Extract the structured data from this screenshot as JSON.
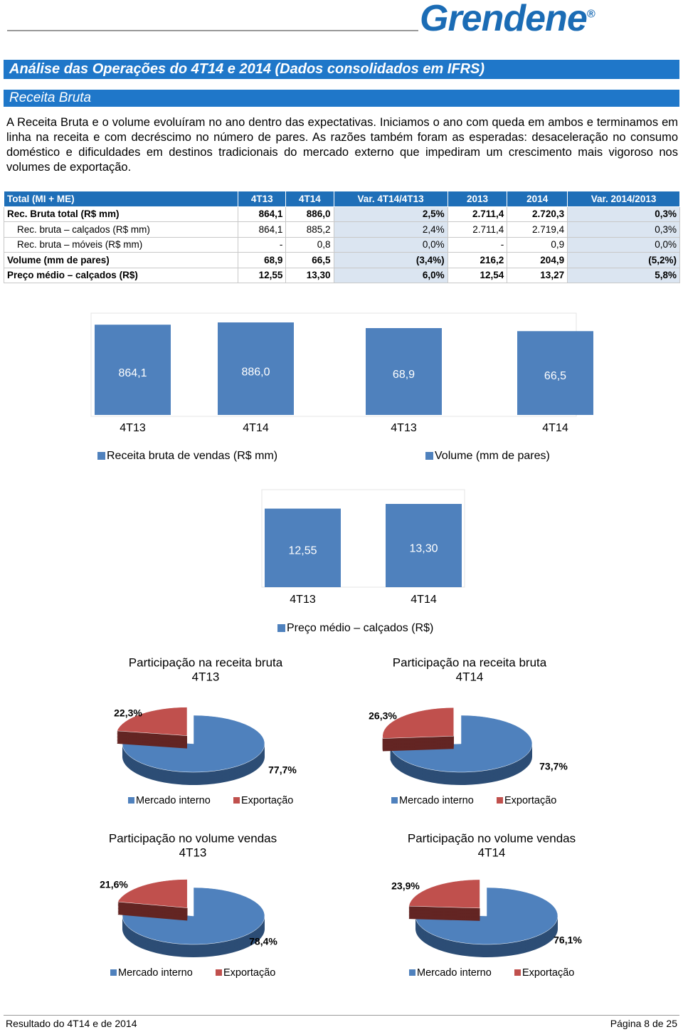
{
  "header": {
    "logo": "Grendene",
    "logo_mark": "®"
  },
  "section": {
    "title": "Análise das Operações do 4T14 e 2014 (Dados consolidados em IFRS)",
    "subtitle": "Receita Bruta",
    "paragraph": "A Receita Bruta e o volume evoluíram no ano dentro das expectativas. Iniciamos o ano com queda em ambos e terminamos em linha na receita e com decréscimo no número de pares. As razões também foram as esperadas: desaceleração no consumo doméstico e dificuldades em destinos tradicionais do mercado externo que impediram um crescimento mais vigoroso nos volumes de exportação."
  },
  "table": {
    "header": [
      "Total (MI + ME)",
      "4T13",
      "4T14",
      "Var. 4T14/4T13",
      "2013",
      "2014",
      "Var. 2014/2013"
    ],
    "rows": [
      [
        "Rec. Bruta total (R$ mm)",
        "864,1",
        "886,0",
        "2,5%",
        "2.711,4",
        "2.720,3",
        "0,3%"
      ],
      [
        "Rec. bruta – calçados (R$ mm)",
        "864,1",
        "885,2",
        "2,4%",
        "2.711,4",
        "2.719,4",
        "0,3%"
      ],
      [
        "Rec. bruta – móveis (R$ mm)",
        "-",
        "0,8",
        "0,0%",
        "-",
        "0,9",
        "0,0%"
      ],
      [
        "Volume (mm de pares)",
        "68,9",
        "66,5",
        "(3,4%)",
        "216,2",
        "204,9",
        "(5,2%)"
      ],
      [
        "Preço médio – calçados (R$)",
        "12,55",
        "13,30",
        "6,0%",
        "12,54",
        "13,27",
        "5,8%"
      ]
    ]
  },
  "chart_data": [
    {
      "type": "bar",
      "categories": [
        "4T13",
        "4T14"
      ],
      "series": [
        {
          "name": "Receita bruta de vendas (R$ mm)",
          "color": "#4f81bd",
          "values": [
            864.1,
            886.0
          ],
          "value_labels": [
            "864,1",
            "886,0"
          ]
        }
      ]
    },
    {
      "type": "bar",
      "categories": [
        "4T13",
        "4T14"
      ],
      "series": [
        {
          "name": "Volume (mm de pares)",
          "color": "#4f81bd",
          "values": [
            68.9,
            66.5
          ],
          "value_labels": [
            "68,9",
            "66,5"
          ]
        }
      ]
    },
    {
      "type": "bar",
      "categories": [
        "4T13",
        "4T14"
      ],
      "series": [
        {
          "name": "Preço médio – calçados (R$)",
          "color": "#4f81bd",
          "values": [
            12.55,
            13.3
          ],
          "value_labels": [
            "12,55",
            "13,30"
          ]
        }
      ]
    },
    {
      "type": "pie",
      "title": [
        "Participação na receita bruta",
        "4T13"
      ],
      "categories": [
        "Mercado interno",
        "Exportação"
      ],
      "colors": [
        "#4f81bd",
        "#c0504d"
      ],
      "values": [
        77.7,
        22.3
      ],
      "value_labels": [
        "77,7%",
        "22,3%"
      ]
    },
    {
      "type": "pie",
      "title": [
        "Participação na receita bruta",
        "4T14"
      ],
      "categories": [
        "Mercado interno",
        "Exportação"
      ],
      "colors": [
        "#4f81bd",
        "#c0504d"
      ],
      "values": [
        73.7,
        26.3
      ],
      "value_labels": [
        "73,7%",
        "26,3%"
      ]
    },
    {
      "type": "pie",
      "title": [
        "Participação no volume vendas",
        "4T13"
      ],
      "categories": [
        "Mercado interno",
        "Exportação"
      ],
      "colors": [
        "#4f81bd",
        "#c0504d"
      ],
      "values": [
        78.4,
        21.6
      ],
      "value_labels": [
        "78,4%",
        "21,6%"
      ]
    },
    {
      "type": "pie",
      "title": [
        "Participação no volume vendas",
        "4T14"
      ],
      "categories": [
        "Mercado interno",
        "Exportação"
      ],
      "colors": [
        "#4f81bd",
        "#c0504d"
      ],
      "values": [
        76.1,
        23.9
      ],
      "value_labels": [
        "76,1%",
        "23,9%"
      ]
    }
  ],
  "footer": {
    "left": "Resultado do 4T14 e de 2014",
    "right": "Página 8 de 25"
  }
}
